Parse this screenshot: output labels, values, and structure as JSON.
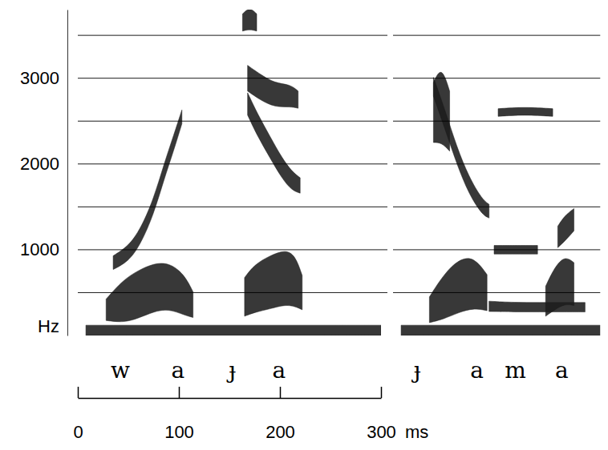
{
  "chart_data": {
    "type": "spectrogram",
    "ylabel": "Hz",
    "xlabel": "ms",
    "ylim": [
      0,
      3800
    ],
    "yticks": [
      1000,
      2000,
      3000
    ],
    "ygrid": [
      500,
      1000,
      1500,
      2000,
      2500,
      3000,
      3500
    ],
    "grid": true,
    "xlim": [
      0,
      300
    ],
    "xticks": [
      0,
      100,
      200,
      300
    ],
    "color": "#1c1c1c",
    "panels": [
      {
        "xlim": [
          0,
          300
        ],
        "segments": [
          "w",
          "a",
          "ɟ",
          "a"
        ],
        "segment_x": [
          42,
          99,
          153,
          199
        ],
        "series": [
          {
            "x": [
              8,
              60,
              120,
              180,
              240,
              300
            ],
            "values": [
              60,
              60,
              60,
              60,
              60,
              60
            ],
            "bandwidth": [
              120,
              120,
              120,
              120,
              120,
              120
            ]
          },
          {
            "x": [
              28,
              45,
              60,
              75,
              90,
              105,
              114
            ],
            "values": [
              300,
              400,
              480,
              560,
              580,
              480,
              360
            ],
            "bandwidth": [
              250,
              500,
              560,
              560,
              540,
              480,
              300
            ]
          },
          {
            "x": [
              35,
              50,
              62,
              75,
              85,
              95,
              103
            ],
            "values": [
              850,
              950,
              1150,
              1500,
              1900,
              2250,
              2550
            ],
            "bandwidth": [
              160,
              180,
              180,
              180,
              180,
              180,
              160
            ]
          },
          {
            "x": [
              165,
              175,
              190,
              205,
              215,
              222
            ],
            "values": [
              450,
              550,
              620,
              680,
              640,
              500
            ],
            "bandwidth": [
              450,
              560,
              620,
              640,
              600,
              400
            ]
          },
          {
            "x": [
              168,
              178,
              190,
              202,
              212,
              220
            ],
            "values": [
              2700,
              2450,
              2200,
              1950,
              1800,
              1750
            ],
            "bandwidth": [
              260,
              260,
              250,
              240,
              220,
              180
            ]
          },
          {
            "x": [
              168,
              180,
              195,
              210,
              218
            ],
            "values": [
              3000,
              2900,
              2800,
              2800,
              2750
            ],
            "bandwidth": [
              300,
              300,
              280,
              260,
              200
            ]
          },
          {
            "x": [
              163,
              170,
              177
            ],
            "values": [
              3650,
              3700,
              3650
            ],
            "bandwidth": [
              200,
              260,
              200
            ]
          }
        ]
      },
      {
        "xlim": [
          0,
          205
        ],
        "segments": [
          "ɟ",
          "a",
          "m",
          "a"
        ],
        "segment_x": [
          24,
          83,
          121,
          167
        ],
        "series": [
          {
            "x": [
              8,
              50,
              100,
              150,
              205
            ],
            "values": [
              60,
              60,
              60,
              60,
              60
            ],
            "bandwidth": [
              120,
              120,
              120,
              120,
              120
            ]
          },
          {
            "x": [
              40,
              48,
              56
            ],
            "values": [
              2600,
              2700,
              2500
            ],
            "bandwidth": [
              700,
              900,
              700
            ]
          },
          {
            "x": [
              36,
              50,
              65,
              80,
              93
            ],
            "values": [
              300,
              450,
              580,
              620,
              500
            ],
            "bandwidth": [
              300,
              520,
              620,
              600,
              420
            ]
          },
          {
            "x": [
              40,
              52,
              63,
              75,
              88,
              95
            ],
            "values": [
              2900,
              2500,
              2100,
              1750,
              1500,
              1450
            ],
            "bandwidth": [
              220,
              220,
              200,
              200,
              180,
              160
            ]
          },
          {
            "x": [
              95,
              120,
              145,
              170,
              190
            ],
            "values": [
              340,
              330,
              330,
              330,
              330
            ],
            "bandwidth": [
              120,
              110,
              110,
              110,
              110
            ]
          },
          {
            "x": [
              100,
              120,
              143
            ],
            "values": [
              1000,
              1000,
              1000
            ],
            "bandwidth": [
              100,
              100,
              100
            ]
          },
          {
            "x": [
              104,
              130,
              158
            ],
            "values": [
              2600,
              2620,
              2600
            ],
            "bandwidth": [
              90,
              90,
              90
            ]
          },
          {
            "x": [
              151,
              160,
              170,
              179
            ],
            "values": [
              400,
              550,
              650,
              600
            ],
            "bandwidth": [
              350,
              500,
              560,
              500
            ]
          },
          {
            "x": [
              163,
              170,
              179
            ],
            "values": [
              1150,
              1250,
              1350
            ],
            "bandwidth": [
              250,
              300,
              260
            ]
          }
        ]
      }
    ]
  }
}
